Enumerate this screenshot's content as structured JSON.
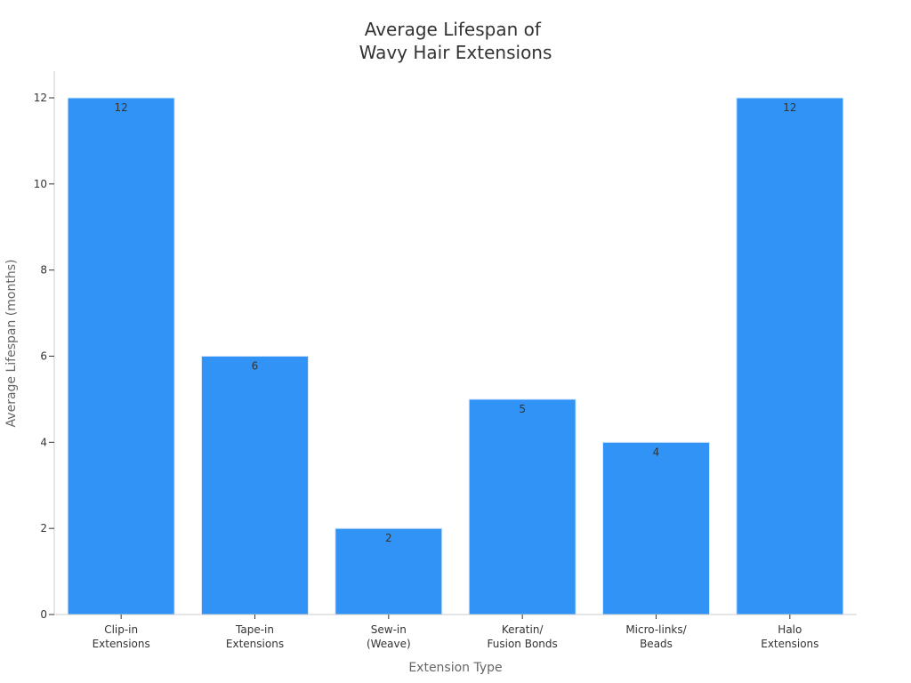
{
  "chart_data": {
    "type": "bar",
    "title": [
      "Average Lifespan of",
      "Wavy Hair Extensions"
    ],
    "xlabel": "Extension Type",
    "ylabel": "Average Lifespan (months)",
    "categories": [
      [
        "Clip-in",
        "Extensions"
      ],
      [
        "Tape-in",
        "Extensions"
      ],
      [
        "Sew-in",
        "(Weave)"
      ],
      [
        "Keratin/",
        "Fusion Bonds"
      ],
      [
        "Micro-links/",
        "Beads"
      ],
      [
        "Halo",
        "Extensions"
      ]
    ],
    "values": [
      12,
      6,
      2,
      5,
      4,
      12
    ],
    "data_labels": [
      "12",
      "6",
      "2",
      "5",
      "4",
      "12"
    ],
    "ylim": [
      0,
      12
    ],
    "yticks": [
      "0",
      "2",
      "4",
      "6",
      "8",
      "10",
      "12"
    ],
    "bar_color": "#3193f5",
    "grid": false,
    "legend": "none"
  }
}
